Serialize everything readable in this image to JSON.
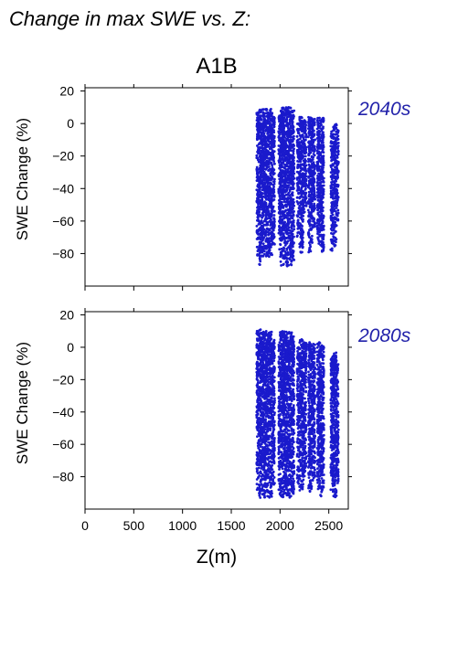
{
  "figure": {
    "title": "Change in max SWE vs. Z:",
    "scenario": "A1B",
    "point_color": "#1a1acc",
    "label_color": "#2222aa"
  },
  "chart_data": [
    {
      "type": "scatter",
      "period_label": "2040s",
      "xlabel": "",
      "ylabel": "SWE Change (%)",
      "xlim": [
        0,
        2700
      ],
      "ylim": [
        -100,
        22
      ],
      "xticks": [
        0,
        500,
        1000,
        1500,
        2000,
        2500
      ],
      "xtick_labels": [],
      "yticks": [
        20,
        0,
        -20,
        -40,
        -60,
        -80
      ],
      "ytick_labels": [
        "20",
        "0",
        "−20",
        "−40",
        "−60",
        "−80"
      ],
      "grid": false,
      "clusters": [
        {
          "x": [
            1760,
            1785
          ],
          "y": [
            -82,
            7
          ]
        },
        {
          "x": [
            1785,
            1800
          ],
          "y": [
            -88,
            10
          ]
        },
        {
          "x": [
            1800,
            1920
          ],
          "y": [
            -82,
            9
          ]
        },
        {
          "x": [
            1920,
            1945
          ],
          "y": [
            -75,
            4
          ]
        },
        {
          "x": [
            1985,
            2000
          ],
          "y": [
            -78,
            5
          ]
        },
        {
          "x": [
            2000,
            2120
          ],
          "y": [
            -88,
            10
          ]
        },
        {
          "x": [
            2120,
            2145
          ],
          "y": [
            -85,
            9
          ]
        },
        {
          "x": [
            2175,
            2195
          ],
          "y": [
            -70,
            0
          ]
        },
        {
          "x": [
            2200,
            2240
          ],
          "y": [
            -80,
            4
          ]
        },
        {
          "x": [
            2240,
            2270
          ],
          "y": [
            -55,
            2
          ]
        },
        {
          "x": [
            2290,
            2330
          ],
          "y": [
            -80,
            4
          ]
        },
        {
          "x": [
            2330,
            2360
          ],
          "y": [
            -65,
            3
          ]
        },
        {
          "x": [
            2380,
            2410
          ],
          "y": [
            -75,
            4
          ]
        },
        {
          "x": [
            2410,
            2450
          ],
          "y": [
            -80,
            4
          ]
        },
        {
          "x": [
            2520,
            2545
          ],
          "y": [
            -80,
            -5
          ]
        },
        {
          "x": [
            2545,
            2580
          ],
          "y": [
            -78,
            0
          ]
        },
        {
          "x": [
            2580,
            2600
          ],
          "y": [
            -60,
            -3
          ]
        }
      ]
    },
    {
      "type": "scatter",
      "period_label": "2080s",
      "xlabel": "Z(m)",
      "ylabel": "SWE Change (%)",
      "xlim": [
        0,
        2700
      ],
      "ylim": [
        -100,
        22
      ],
      "xticks": [
        0,
        500,
        1000,
        1500,
        2000,
        2500
      ],
      "xtick_labels": [
        "0",
        "500",
        "1000",
        "1500",
        "2000",
        "2500"
      ],
      "yticks": [
        20,
        0,
        -20,
        -40,
        -60,
        -80
      ],
      "ytick_labels": [
        "20",
        "0",
        "−20",
        "−40",
        "−60",
        "−80"
      ],
      "grid": false,
      "clusters": [
        {
          "x": [
            1760,
            1785
          ],
          "y": [
            -90,
            10
          ]
        },
        {
          "x": [
            1785,
            1800
          ],
          "y": [
            -93,
            11
          ]
        },
        {
          "x": [
            1800,
            1920
          ],
          "y": [
            -93,
            10
          ]
        },
        {
          "x": [
            1920,
            1945
          ],
          "y": [
            -85,
            5
          ]
        },
        {
          "x": [
            1985,
            2000
          ],
          "y": [
            -92,
            5
          ]
        },
        {
          "x": [
            2000,
            2120
          ],
          "y": [
            -93,
            10
          ]
        },
        {
          "x": [
            2120,
            2145
          ],
          "y": [
            -92,
            8
          ]
        },
        {
          "x": [
            2175,
            2195
          ],
          "y": [
            -85,
            0
          ]
        },
        {
          "x": [
            2200,
            2240
          ],
          "y": [
            -90,
            5
          ]
        },
        {
          "x": [
            2240,
            2270
          ],
          "y": [
            -80,
            3
          ]
        },
        {
          "x": [
            2290,
            2330
          ],
          "y": [
            -90,
            3
          ]
        },
        {
          "x": [
            2330,
            2360
          ],
          "y": [
            -85,
            2
          ]
        },
        {
          "x": [
            2380,
            2410
          ],
          "y": [
            -88,
            3
          ]
        },
        {
          "x": [
            2410,
            2450
          ],
          "y": [
            -92,
            2
          ]
        },
        {
          "x": [
            2520,
            2545
          ],
          "y": [
            -90,
            -5
          ]
        },
        {
          "x": [
            2545,
            2580
          ],
          "y": [
            -94,
            -3
          ]
        },
        {
          "x": [
            2580,
            2600
          ],
          "y": [
            -85,
            -10
          ]
        }
      ]
    }
  ]
}
